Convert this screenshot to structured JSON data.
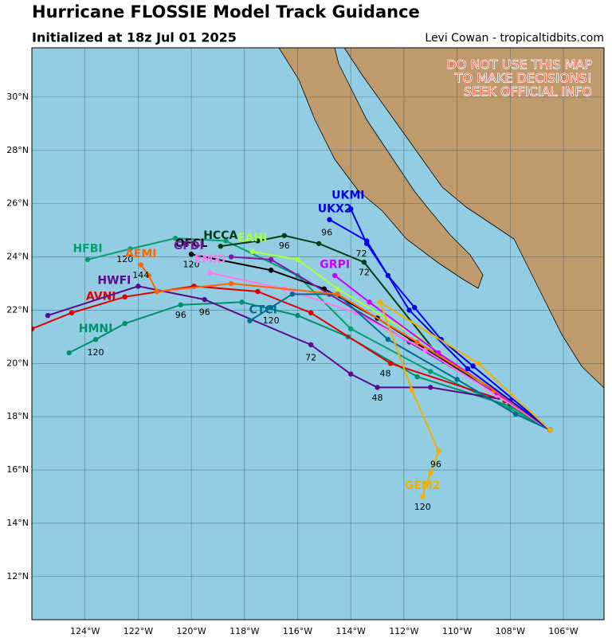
{
  "header": {
    "title": "Hurricane FLOSSIE Model Track Guidance",
    "subtitle": "Initialized at 18z Jul 01 2025",
    "credit": "Levi Cowan - tropicaltidbits.com"
  },
  "warning": [
    "DO NOT USE THIS MAP",
    "TO MAKE DECISIONS!",
    "SEEK OFFICIAL INFO"
  ],
  "map": {
    "xlim": [
      -126.0,
      -104.47
    ],
    "ylim": [
      10.38,
      31.85
    ],
    "xticks": [
      {
        "value": -124,
        "label": "124°W"
      },
      {
        "value": -122,
        "label": "122°W"
      },
      {
        "value": -120,
        "label": "120°W"
      },
      {
        "value": -118,
        "label": "118°W"
      },
      {
        "value": -116,
        "label": "116°W"
      },
      {
        "value": -114,
        "label": "114°W"
      },
      {
        "value": -112,
        "label": "112°W"
      },
      {
        "value": -110,
        "label": "110°W"
      },
      {
        "value": -108,
        "label": "108°W"
      },
      {
        "value": -106,
        "label": "106°W"
      }
    ],
    "yticks": [
      {
        "value": 12,
        "label": "12°N"
      },
      {
        "value": 14,
        "label": "14°N"
      },
      {
        "value": 16,
        "label": "16°N"
      },
      {
        "value": 18,
        "label": "18°N"
      },
      {
        "value": 20,
        "label": "20°N"
      },
      {
        "value": 22,
        "label": "22°N"
      },
      {
        "value": 24,
        "label": "24°N"
      },
      {
        "value": 26,
        "label": "26°N"
      },
      {
        "value": 28,
        "label": "28°N"
      },
      {
        "value": 30,
        "label": "30°N"
      }
    ],
    "grid": true
  },
  "tracks": [
    {
      "name": "HFBI",
      "color": "#00a070",
      "label_at": [
        -123.9,
        24.3
      ],
      "points": [
        [
          -106.5,
          17.5
        ],
        [
          -108,
          18.3
        ],
        [
          -111,
          19.7
        ],
        [
          -114,
          21.3
        ],
        [
          -116,
          23.3
        ],
        [
          -118.7,
          24.6
        ],
        [
          -120.6,
          24.7
        ],
        [
          -122.3,
          24.3
        ],
        [
          -123.9,
          23.9
        ]
      ],
      "hour_labels": [
        {
          "text": "120",
          "at": [
            -122.5,
            23.9
          ]
        }
      ]
    },
    {
      "name": "HMNI",
      "color": "#00906a",
      "label_at": [
        -123.6,
        21.3
      ],
      "points": [
        [
          -106.5,
          17.5
        ],
        [
          -108,
          18.4
        ],
        [
          -111.5,
          19.5
        ],
        [
          -114.1,
          21.0
        ],
        [
          -116,
          21.8
        ],
        [
          -118.1,
          22.3
        ],
        [
          -120.4,
          22.2
        ],
        [
          -122.5,
          21.5
        ],
        [
          -123.6,
          20.9
        ],
        [
          -124.6,
          20.4
        ]
      ],
      "hour_labels": [
        {
          "text": "120",
          "at": [
            -123.6,
            20.4
          ]
        },
        {
          "text": "96",
          "at": [
            -120.4,
            21.8
          ]
        }
      ]
    },
    {
      "name": "AVNI",
      "color": "#e00000",
      "label_at": [
        -123.4,
        22.5
      ],
      "points": [
        [
          -106.5,
          17.5
        ],
        [
          -108.2,
          18.6
        ],
        [
          -112.5,
          20.0
        ],
        [
          -115.5,
          21.9
        ],
        [
          -117.5,
          22.7
        ],
        [
          -119.9,
          22.9
        ],
        [
          -122.5,
          22.5
        ],
        [
          -124.5,
          21.9
        ],
        [
          -126,
          21.3
        ]
      ],
      "hour_labels": [
        {
          "text": "48",
          "at": [
            -112.7,
            19.6
          ]
        }
      ]
    },
    {
      "name": "HWFI",
      "color": "#5a0a8a",
      "label_at": [
        -122.9,
        23.1
      ],
      "points": [
        [
          -106.5,
          17.5
        ],
        [
          -108,
          18.6
        ],
        [
          -111,
          19.1
        ],
        [
          -113,
          19.1
        ],
        [
          -114,
          19.6
        ],
        [
          -115.5,
          20.7
        ],
        [
          -119.5,
          22.4
        ],
        [
          -122,
          22.9
        ],
        [
          -125.4,
          21.8
        ]
      ],
      "hour_labels": [
        {
          "text": "72",
          "at": [
            -115.5,
            20.2
          ]
        },
        {
          "text": "48",
          "at": [
            -113,
            18.7
          ]
        },
        {
          "text": "96",
          "at": [
            -119.5,
            21.9
          ]
        }
      ]
    },
    {
      "name": "OFCL",
      "color": "#000000",
      "label_at": [
        -120.0,
        24.5
      ],
      "points": [
        [
          -106.5,
          17.5
        ],
        [
          -108,
          18.5
        ],
        [
          -110.5,
          20.1
        ],
        [
          -113,
          21.7
        ],
        [
          -115,
          22.8
        ],
        [
          -117,
          23.5
        ],
        [
          -120,
          24.1
        ]
      ],
      "hour_labels": [
        {
          "text": "120",
          "at": [
            -120,
            23.7
          ]
        }
      ]
    },
    {
      "name": "HCCA",
      "color": "#003c14",
      "label_at": [
        -118.9,
        24.8
      ],
      "points": [
        [
          -106.5,
          17.5
        ],
        [
          -108,
          18.5
        ],
        [
          -110.7,
          20.3
        ],
        [
          -113.5,
          23.8
        ],
        [
          -115.2,
          24.5
        ],
        [
          -116.5,
          24.8
        ],
        [
          -117.5,
          24.6
        ],
        [
          -118.9,
          24.4
        ]
      ],
      "hour_labels": [
        {
          "text": "96",
          "at": [
            -116.5,
            24.4
          ]
        },
        {
          "text": "72",
          "at": [
            -113.5,
            23.4
          ]
        }
      ]
    },
    {
      "name": "EAHI",
      "color": "#aaff44",
      "label_at": [
        -117.7,
        24.7
      ],
      "points": [
        [
          -106.5,
          17.5
        ],
        [
          -108.3,
          18.7
        ],
        [
          -111.5,
          21
        ],
        [
          -114.5,
          22.8
        ],
        [
          -116,
          23.9
        ],
        [
          -117.7,
          24.2
        ]
      ]
    },
    {
      "name": "GFDI",
      "color": "#7a1aa8",
      "label_at": [
        -120.1,
        24.4
      ],
      "points": [
        [
          -106.5,
          17.5
        ],
        [
          -108.4,
          18.8
        ],
        [
          -111.8,
          20.8
        ],
        [
          -114.8,
          22.6
        ],
        [
          -117,
          23.9
        ],
        [
          -118.5,
          24.0
        ]
      ]
    },
    {
      "name": "EMXI",
      "color": "#ff77ee",
      "label_at": [
        -119.3,
        23.9
      ],
      "points": [
        [
          -106.5,
          17.5
        ],
        [
          -108.5,
          18.8
        ],
        [
          -111.2,
          20.5
        ],
        [
          -113.8,
          21.9
        ],
        [
          -116.5,
          22.8
        ],
        [
          -119.3,
          23.4
        ]
      ]
    },
    {
      "name": "CTCI",
      "color": "#006e8e",
      "label_at": [
        -117.3,
        22.0
      ],
      "points": [
        [
          -106.5,
          17.5
        ],
        [
          -107.8,
          18.1
        ],
        [
          -110,
          19.4
        ],
        [
          -112.6,
          20.9
        ],
        [
          -114.5,
          22.6
        ],
        [
          -116.2,
          22.6
        ],
        [
          -117,
          22.1
        ],
        [
          -117.8,
          21.6
        ]
      ],
      "hour_labels": [
        {
          "text": "120",
          "at": [
            -117,
            21.6
          ]
        }
      ]
    },
    {
      "name": "GRPI",
      "color": "#cc00ff",
      "label_at": [
        -114.6,
        23.7
      ],
      "points": [
        [
          -106.5,
          17.5
        ],
        [
          -108.5,
          18.9
        ],
        [
          -110.7,
          20.4
        ],
        [
          -113.3,
          22.3
        ],
        [
          -114.6,
          23.3
        ]
      ]
    },
    {
      "name": "AEMI",
      "color": "#ff6600",
      "label_at": [
        -121.9,
        24.1
      ],
      "points": [
        [
          -106.5,
          17.5
        ],
        [
          -108.6,
          19
        ],
        [
          -111.5,
          20.8
        ],
        [
          -114.5,
          22.6
        ],
        [
          -118.5,
          23
        ],
        [
          -121.3,
          22.7
        ],
        [
          -121.6,
          23.3
        ],
        [
          -121.9,
          23.7
        ]
      ],
      "hour_labels": [
        {
          "text": "144",
          "at": [
            -121.9,
            23.3
          ]
        }
      ]
    },
    {
      "name": "UKMI",
      "color": "#0000ee",
      "label_at": [
        -114.1,
        26.3
      ],
      "points": [
        [
          -106.5,
          17.5
        ],
        [
          -109.4,
          19.9
        ],
        [
          -110.6,
          20.9
        ],
        [
          -111.6,
          22.1
        ],
        [
          -112.6,
          23.3
        ],
        [
          -113.4,
          24.5
        ],
        [
          -114.0,
          25.8
        ]
      ],
      "hour_labels": [
        {
          "text": "72",
          "at": [
            -113.6,
            24.1
          ]
        }
      ]
    },
    {
      "name": "UKX2",
      "color": "#0000ee",
      "label_at": [
        -114.6,
        25.8
      ],
      "points": [
        [
          -106.5,
          17.5
        ],
        [
          -109.6,
          19.8
        ],
        [
          -111.8,
          22
        ],
        [
          -113.4,
          24.6
        ],
        [
          -114.8,
          25.4
        ]
      ],
      "hour_labels": [
        {
          "text": "96",
          "at": [
            -114.9,
            24.9
          ]
        }
      ]
    },
    {
      "name": "GEM2",
      "color": "#f0b000",
      "label_at": [
        -111.3,
        15.4
      ],
      "points": [
        [
          -106.5,
          17.5
        ],
        [
          -109.2,
          20.0
        ],
        [
          -112.9,
          22.3
        ],
        [
          -111.7,
          19.0
        ],
        [
          -110.7,
          16.7
        ],
        [
          -111.0,
          15.9
        ],
        [
          -111.3,
          15.0
        ]
      ],
      "hour_labels": [
        {
          "text": "120",
          "at": [
            -111.3,
            14.6
          ]
        },
        {
          "text": "96",
          "at": [
            -110.8,
            16.2
          ]
        }
      ]
    }
  ]
}
